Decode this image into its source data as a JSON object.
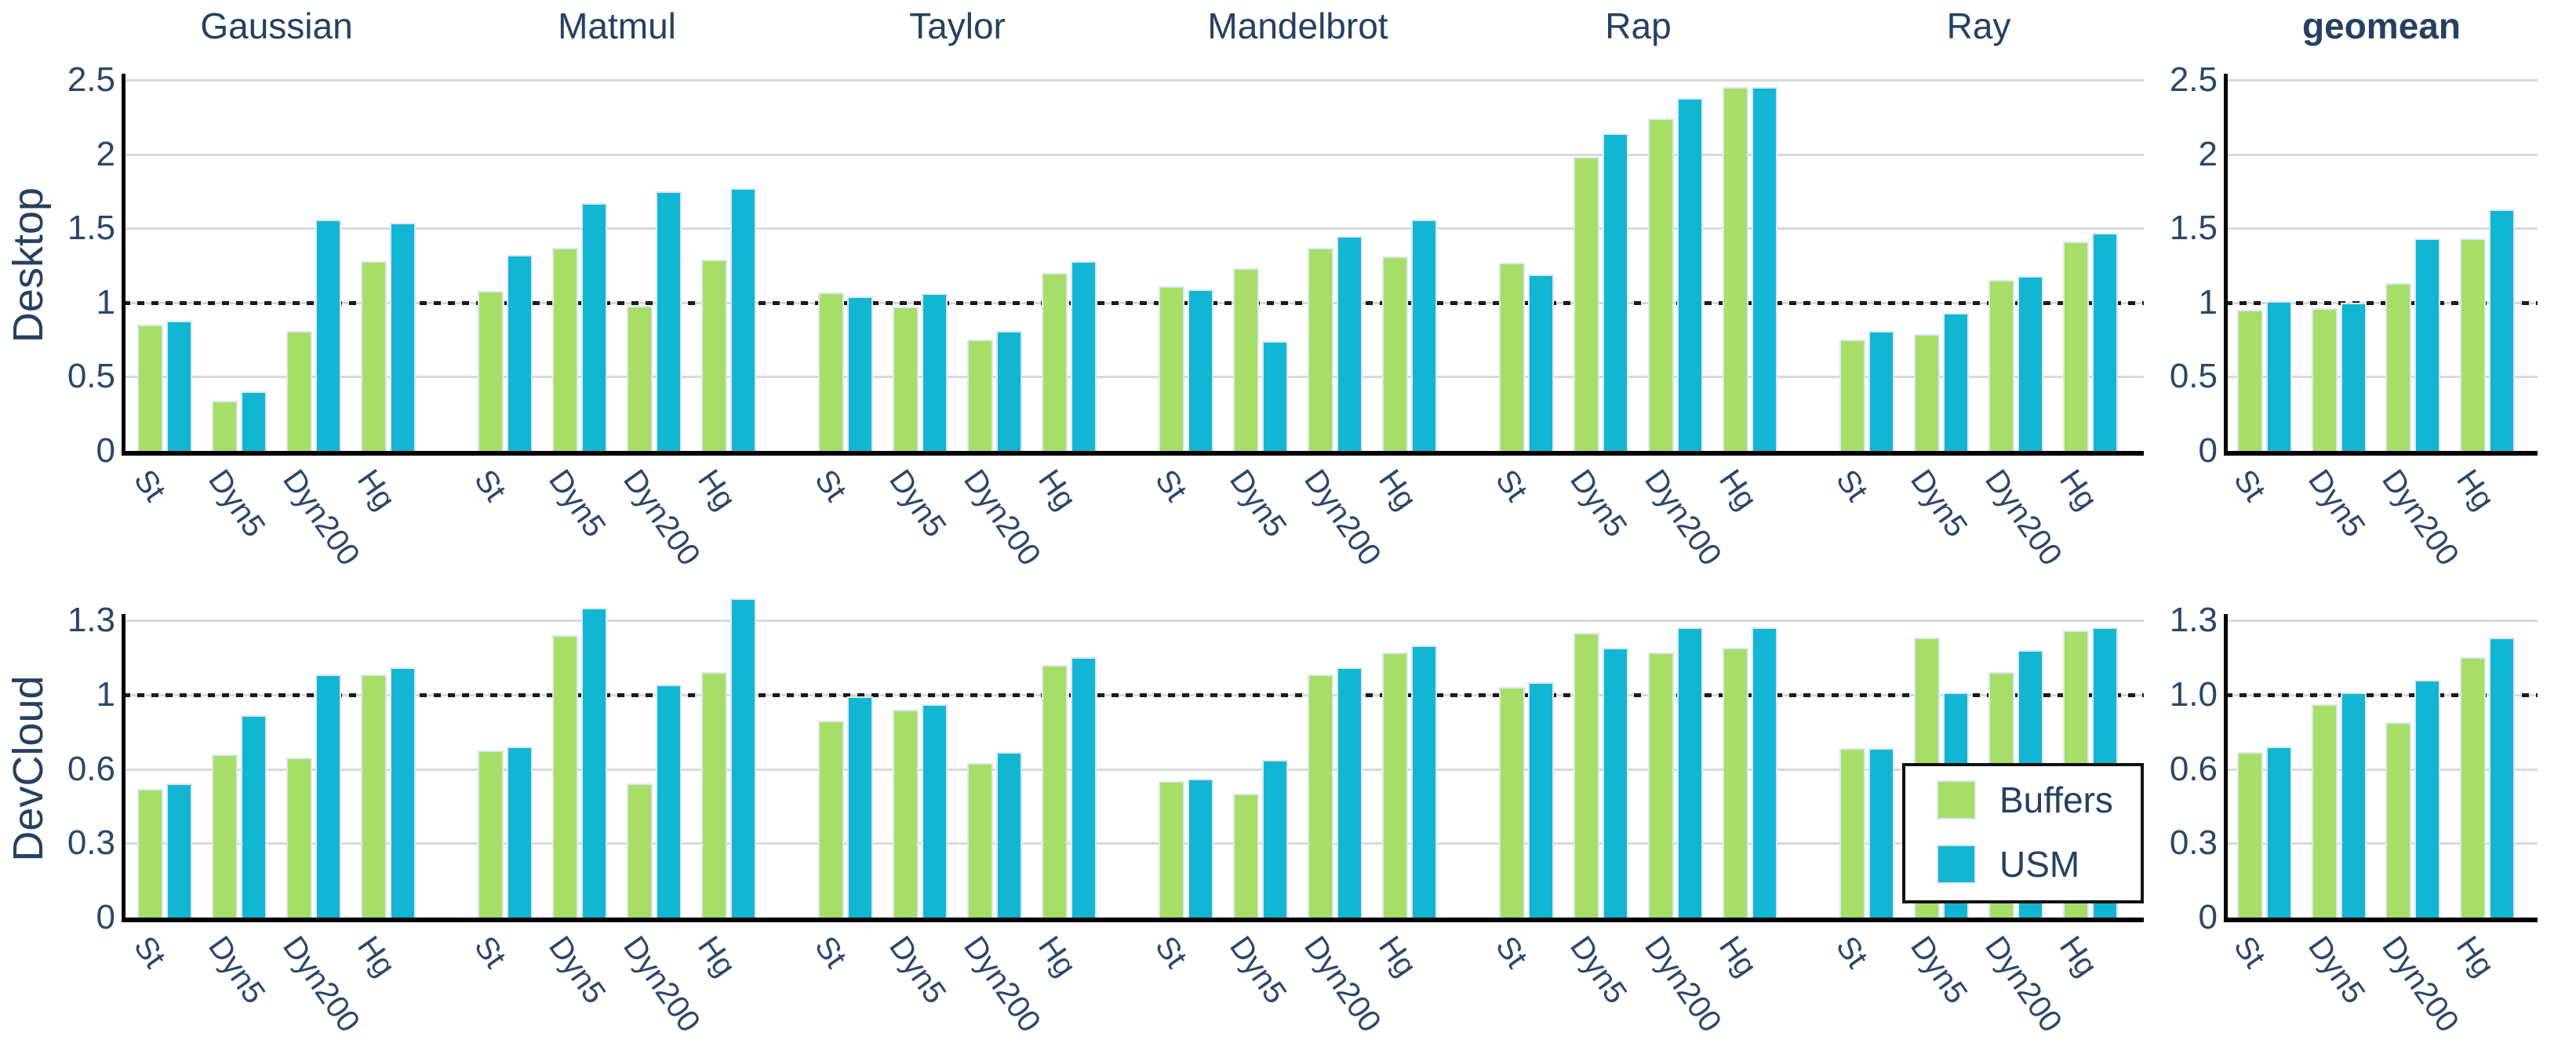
{
  "colors": {
    "buffers": "#a6de68",
    "usm": "#12b6d2",
    "text_navy": "#254061",
    "gridline": "#d9d9d9",
    "reference_line": "#1b1b1b",
    "bar_edge": "#dce7f5"
  },
  "legend": {
    "items": [
      {
        "label": "Buffers",
        "color_key": "buffers"
      },
      {
        "label": "USM",
        "color_key": "usm"
      }
    ]
  },
  "chart_data": {
    "type": "bar",
    "series": [
      "Buffers",
      "USM"
    ],
    "categories": [
      "St",
      "Dyn5",
      "Dyn200",
      "Hg"
    ],
    "section_titles": [
      "Gaussian",
      "Matmul",
      "Taylor",
      "Mandelbrot",
      "Rap",
      "Ray"
    ],
    "geomean_title": "geomean",
    "legend_position": "lower right inside Ray panel of bottom row",
    "grid": "horizontal gridlines on, dotted reference line at value 1",
    "rows": [
      {
        "label": "Desktop",
        "tick_values": [
          0,
          0.5,
          1,
          1.5,
          2,
          2.5
        ],
        "tick_labels": [
          "0",
          "0.5",
          "1",
          "1.5",
          "2",
          "2.5"
        ],
        "geomean_tick_labels": [
          "0",
          "0.5",
          "1",
          "1.5",
          "2",
          "2.5"
        ],
        "reference_value": 1,
        "ylim": [
          0,
          2.5
        ],
        "sections": [
          {
            "name": "Gaussian",
            "buffers": [
              0.85,
              0.34,
              0.81,
              1.28
            ],
            "usm": [
              0.88,
              0.4,
              1.56,
              1.54
            ]
          },
          {
            "name": "Matmul",
            "buffers": [
              1.08,
              1.37,
              0.98,
              1.29
            ],
            "usm": [
              1.32,
              1.67,
              1.75,
              1.77
            ]
          },
          {
            "name": "Taylor",
            "buffers": [
              1.07,
              0.97,
              0.75,
              1.2
            ],
            "usm": [
              1.04,
              1.06,
              0.81,
              1.28
            ]
          },
          {
            "name": "Mandelbrot",
            "buffers": [
              1.11,
              1.23,
              1.37,
              1.31
            ],
            "usm": [
              1.09,
              0.74,
              1.45,
              1.56
            ]
          },
          {
            "name": "Rap",
            "buffers": [
              1.27,
              1.98,
              2.24,
              2.45
            ],
            "usm": [
              1.19,
              2.14,
              2.38,
              2.45
            ]
          },
          {
            "name": "Ray",
            "buffers": [
              0.75,
              0.79,
              1.15,
              1.41
            ],
            "usm": [
              0.81,
              0.93,
              1.18,
              1.47
            ]
          }
        ],
        "geomean": {
          "name": "geomean",
          "buffers": [
            0.95,
            0.96,
            1.13,
            1.43
          ],
          "usm": [
            1.01,
            1.0,
            1.43,
            1.63
          ]
        }
      },
      {
        "label": "DevCloud",
        "tick_values": [
          0,
          0.3,
          0.6,
          1,
          1.3
        ],
        "tick_labels": [
          "0",
          "0.3",
          "0.6",
          "1",
          "1.3"
        ],
        "geomean_tick_labels": [
          "0",
          "0.3",
          "0.6",
          "1.0",
          "1.3"
        ],
        "reference_value": 1,
        "ylim": [
          0,
          1.45
        ],
        "sections": [
          {
            "name": "Gaussian",
            "buffers": [
              0.52,
              0.68,
              0.66,
              1.08
            ],
            "usm": [
              0.54,
              0.89,
              1.08,
              1.11
            ]
          },
          {
            "name": "Matmul",
            "buffers": [
              0.7,
              1.24,
              0.54,
              1.09
            ],
            "usm": [
              0.72,
              1.35,
              1.04,
              1.39
            ]
          },
          {
            "name": "Taylor",
            "buffers": [
              0.86,
              0.92,
              0.63,
              1.12
            ],
            "usm": [
              0.99,
              0.95,
              0.69,
              1.15
            ]
          },
          {
            "name": "Mandelbrot",
            "buffers": [
              0.55,
              0.5,
              1.08,
              1.17
            ],
            "usm": [
              0.56,
              0.65,
              1.11,
              1.2
            ]
          },
          {
            "name": "Rap",
            "buffers": [
              1.03,
              1.25,
              1.17,
              1.19
            ],
            "usm": [
              1.05,
              1.19,
              1.27,
              1.27
            ]
          },
          {
            "name": "Ray",
            "buffers": [
              0.71,
              1.23,
              1.09,
              1.26
            ],
            "usm": [
              0.71,
              1.01,
              1.18,
              1.27
            ]
          }
        ],
        "geomean": {
          "name": "geomean",
          "buffers": [
            0.69,
            0.95,
            0.85,
            1.15
          ],
          "usm": [
            0.72,
            1.01,
            1.06,
            1.23
          ]
        }
      }
    ]
  }
}
